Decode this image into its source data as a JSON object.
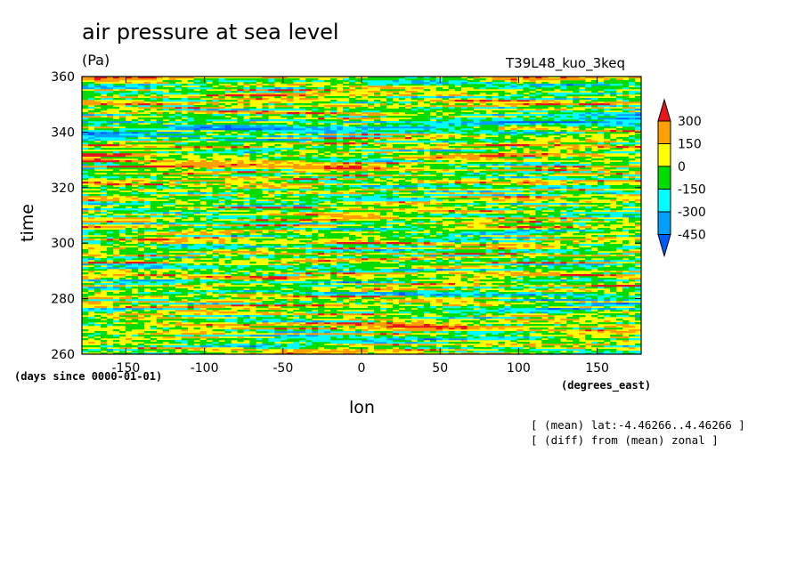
{
  "chart_data": {
    "type": "heatmap",
    "title": "air pressure at sea level",
    "units": "(Pa)",
    "run_label": "T39L48_kuo_3keq",
    "xlabel": "lon",
    "ylabel": "time",
    "x_units": "(degrees_east)",
    "y_units": "(days since 0000-01-01)",
    "xlim": [
      -178,
      178
    ],
    "ylim": [
      260,
      360
    ],
    "x_ticks": [
      -150,
      -100,
      -50,
      0,
      50,
      100,
      150
    ],
    "x_tick_labels": [
      "-150",
      "-100",
      "-50",
      "0",
      "50",
      "100",
      "150"
    ],
    "y_ticks": [
      260,
      280,
      300,
      320,
      340,
      360
    ],
    "y_tick_labels": [
      "260",
      "280",
      "300",
      "320",
      "340",
      "360"
    ],
    "colorbar": {
      "levels": [
        300,
        150,
        0,
        -150,
        -300,
        -450
      ],
      "labels": [
        "300",
        "150",
        "0",
        "-150",
        "-300",
        "-450"
      ],
      "colors": [
        "#e8141c",
        "#ff9f00",
        "#ffff00",
        "#00dc00",
        "#00ffff",
        "#00a0ff",
        "#005aff"
      ]
    },
    "annotations": [
      "[ (mean) lat:-4.46266..4.46266 ]",
      "[ (diff) from (mean) zonal ]"
    ]
  }
}
